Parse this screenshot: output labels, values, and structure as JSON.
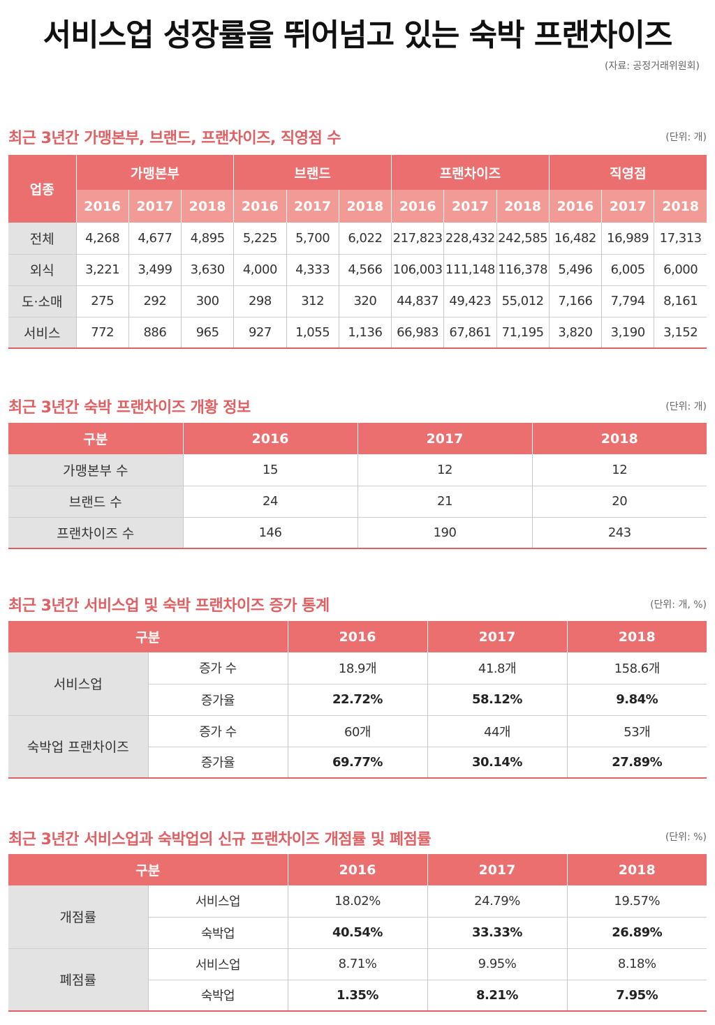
{
  "title": "서비스업 성장률을 뛰어넘고 있는 숙박 프랜차이즈",
  "source": "(자료: 공정거래위원회)",
  "t1": {
    "title": "최근 3년간 가맹본부, 브랜드, 프랜차이즈, 직영점 수",
    "unit": "(단위: 개)",
    "col0": "업종",
    "groups": [
      "가맹본부",
      "브랜드",
      "프랜차이즈",
      "직영점"
    ],
    "years": [
      "2016",
      "2017",
      "2018"
    ],
    "rows": [
      {
        "label": "전체",
        "values": [
          "4,268",
          "4,677",
          "4,895",
          "5,225",
          "5,700",
          "6,022",
          "217,823",
          "228,432",
          "242,585",
          "16,482",
          "16,989",
          "17,313"
        ]
      },
      {
        "label": "외식",
        "values": [
          "3,221",
          "3,499",
          "3,630",
          "4,000",
          "4,333",
          "4,566",
          "106,003",
          "111,148",
          "116,378",
          "5,496",
          "6,005",
          "6,000"
        ]
      },
      {
        "label": "도·소매",
        "values": [
          "275",
          "292",
          "300",
          "298",
          "312",
          "320",
          "44,837",
          "49,423",
          "55,012",
          "7,166",
          "7,794",
          "8,161"
        ]
      },
      {
        "label": "서비스",
        "values": [
          "772",
          "886",
          "965",
          "927",
          "1,055",
          "1,136",
          "66,983",
          "67,861",
          "71,195",
          "3,820",
          "3,190",
          "3,152"
        ]
      }
    ]
  },
  "t2": {
    "title": "최근 3년간 숙박 프랜차이즈 개황 정보",
    "unit": "(단위: 개)",
    "headers": [
      "구분",
      "2016",
      "2017",
      "2018"
    ],
    "rows": [
      {
        "label": "가맹본부 수",
        "values": [
          "15",
          "12",
          "12"
        ]
      },
      {
        "label": "브랜드 수",
        "values": [
          "24",
          "21",
          "20"
        ]
      },
      {
        "label": "프랜차이즈 수",
        "values": [
          "146",
          "190",
          "243"
        ]
      }
    ]
  },
  "t3": {
    "title": "최근 3년간 서비스업 및 숙박 프랜차이즈 증가 통계",
    "unit": "(단위: 개, %)",
    "headers": [
      "구분",
      "2016",
      "2017",
      "2018"
    ],
    "groups": [
      {
        "label": "서비스업",
        "rows": [
          {
            "label": "증가 수",
            "values": [
              "18.9개",
              "41.8개",
              "158.6개"
            ]
          },
          {
            "label": "증가율",
            "values": [
              "22.72%",
              "58.12%",
              "9.84%"
            ]
          }
        ]
      },
      {
        "label": "숙박업 프랜차이즈",
        "rows": [
          {
            "label": "증가 수",
            "values": [
              "60개",
              "44개",
              "53개"
            ]
          },
          {
            "label": "증가율",
            "values": [
              "69.77%",
              "30.14%",
              "27.89%"
            ]
          }
        ]
      }
    ]
  },
  "t4": {
    "title": "최근 3년간 서비스업과 숙박업의 신규 프랜차이즈 개점률 및 폐점률",
    "unit": "(단위: %)",
    "headers": [
      "구분",
      "2016",
      "2017",
      "2018"
    ],
    "groups": [
      {
        "label": "개점률",
        "rows": [
          {
            "label": "서비스업",
            "values": [
              "18.02%",
              "24.79%",
              "19.57%"
            ]
          },
          {
            "label": "숙박업",
            "values": [
              "40.54%",
              "33.33%",
              "26.89%"
            ]
          }
        ]
      },
      {
        "label": "폐점률",
        "rows": [
          {
            "label": "서비스업",
            "values": [
              "8.71%",
              "9.95%",
              "8.18%"
            ]
          },
          {
            "label": "숙박업",
            "values": [
              "1.35%",
              "8.21%",
              "7.95%"
            ]
          }
        ]
      }
    ]
  }
}
